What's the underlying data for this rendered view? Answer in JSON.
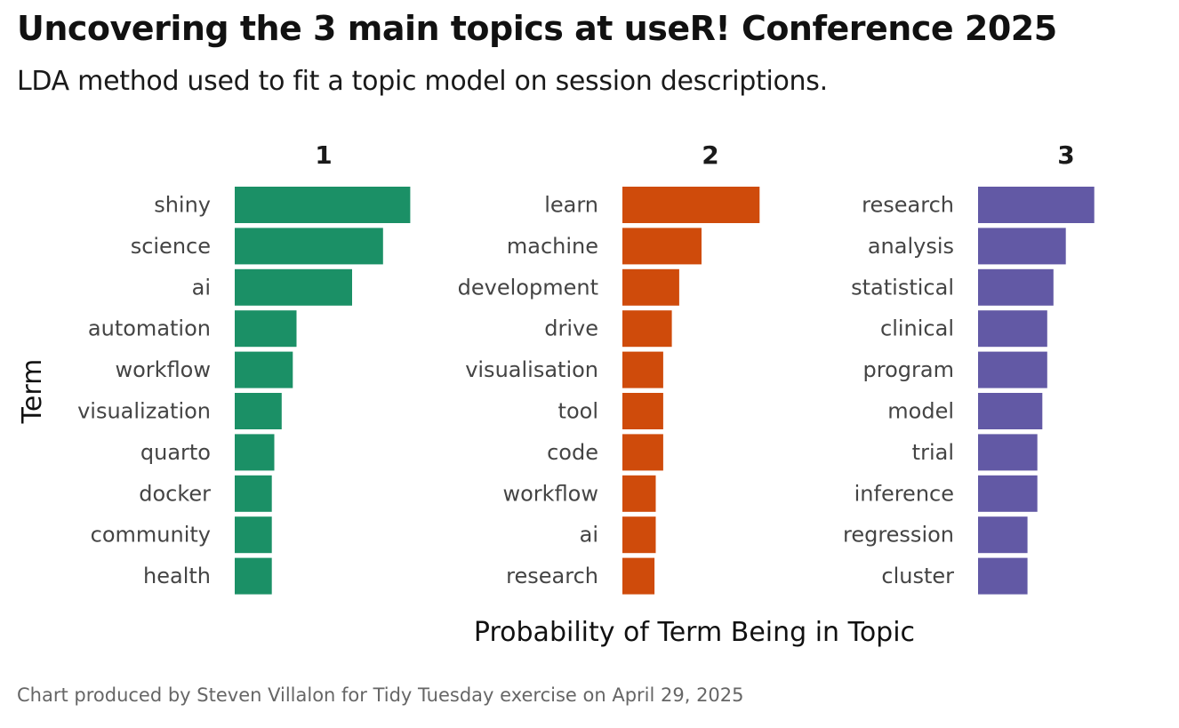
{
  "title": "Uncovering the 3 main topics at useR! Conference 2025",
  "subtitle": "LDA method used to fit a topic model on session descriptions.",
  "caption": "Chart produced by Steven Villalon for Tidy Tuesday exercise on April 29, 2025",
  "chart_data": {
    "type": "bar",
    "orientation": "horizontal",
    "xlabel": "Probability of Term Being in Topic",
    "ylabel": "Term",
    "grid": false,
    "legend": "none",
    "facets": [
      {
        "name": "1",
        "color": "#1b9066",
        "terms": [
          "shiny",
          "science",
          "ai",
          "automation",
          "workflow",
          "visualization",
          "quarto",
          "docker",
          "community",
          "health"
        ],
        "values": [
          0.0142,
          0.012,
          0.0095,
          0.005,
          0.0047,
          0.0038,
          0.0032,
          0.003,
          0.003,
          0.003
        ]
      },
      {
        "name": "2",
        "color": "#cf4b0b",
        "terms": [
          "learn",
          "machine",
          "development",
          "drive",
          "visualisation",
          "tool",
          "code",
          "workflow",
          "ai",
          "research"
        ],
        "values": [
          0.0111,
          0.0064,
          0.0046,
          0.004,
          0.0033,
          0.0033,
          0.0033,
          0.0027,
          0.0027,
          0.0026
        ]
      },
      {
        "name": "3",
        "color": "#6259a5",
        "terms": [
          "research",
          "analysis",
          "statistical",
          "clinical",
          "program",
          "model",
          "trial",
          "inference",
          "regression",
          "cluster"
        ],
        "values": [
          0.0094,
          0.0071,
          0.0061,
          0.0056,
          0.0056,
          0.0052,
          0.0048,
          0.0048,
          0.004,
          0.004
        ]
      }
    ]
  }
}
